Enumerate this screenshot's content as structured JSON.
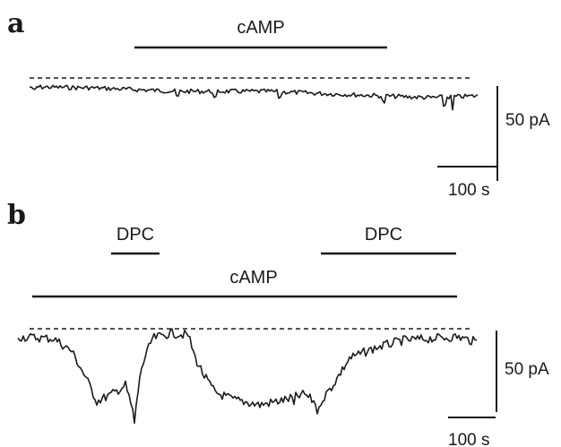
{
  "panel_a": {
    "label": "a",
    "treatment_label": "cAMP",
    "current_scale_label": "50 pA",
    "time_scale_label": "100 s"
  },
  "panel_b": {
    "label": "b",
    "dpc_label_1": "DPC",
    "dpc_label_2": "DPC",
    "treatment_label": "cAMP",
    "current_scale_label": "50 pA",
    "time_scale_label": "100 s"
  }
}
